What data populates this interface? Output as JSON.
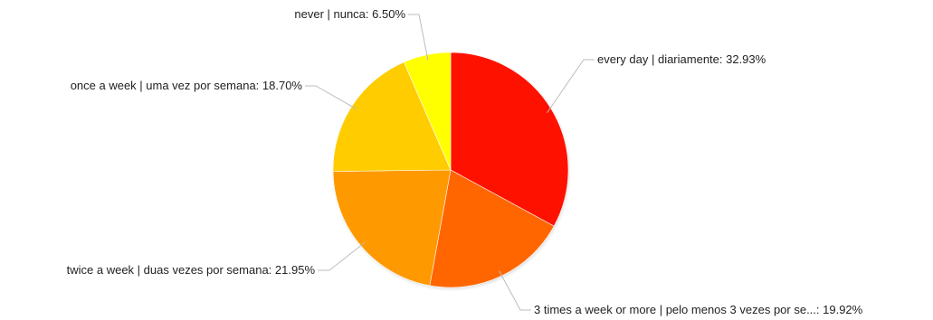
{
  "chart_data": {
    "type": "pie",
    "title": "",
    "legend": "none",
    "slices": [
      {
        "label": "every day | diariamente: 32.93%",
        "category": "every day | diariamente",
        "value": 32.93,
        "color": "#ff1100"
      },
      {
        "label": "3 times a week or more | pelo menos 3 vezes por se...: 19.92%",
        "category": "3 times a week or more | pelo menos 3 vezes por se...",
        "value": 19.92,
        "color": "#ff6600"
      },
      {
        "label": "twice a week | duas vezes por semana: 21.95%",
        "category": "twice a week | duas vezes por semana",
        "value": 21.95,
        "color": "#ff9900"
      },
      {
        "label": "once a week | uma vez por semana: 18.70%",
        "category": "once a week | uma vez por semana",
        "value": 18.7,
        "color": "#ffcc00"
      },
      {
        "label": "never | nunca: 6.50%",
        "category": "never | nunca",
        "value": 6.5,
        "color": "#ffff00"
      }
    ]
  }
}
